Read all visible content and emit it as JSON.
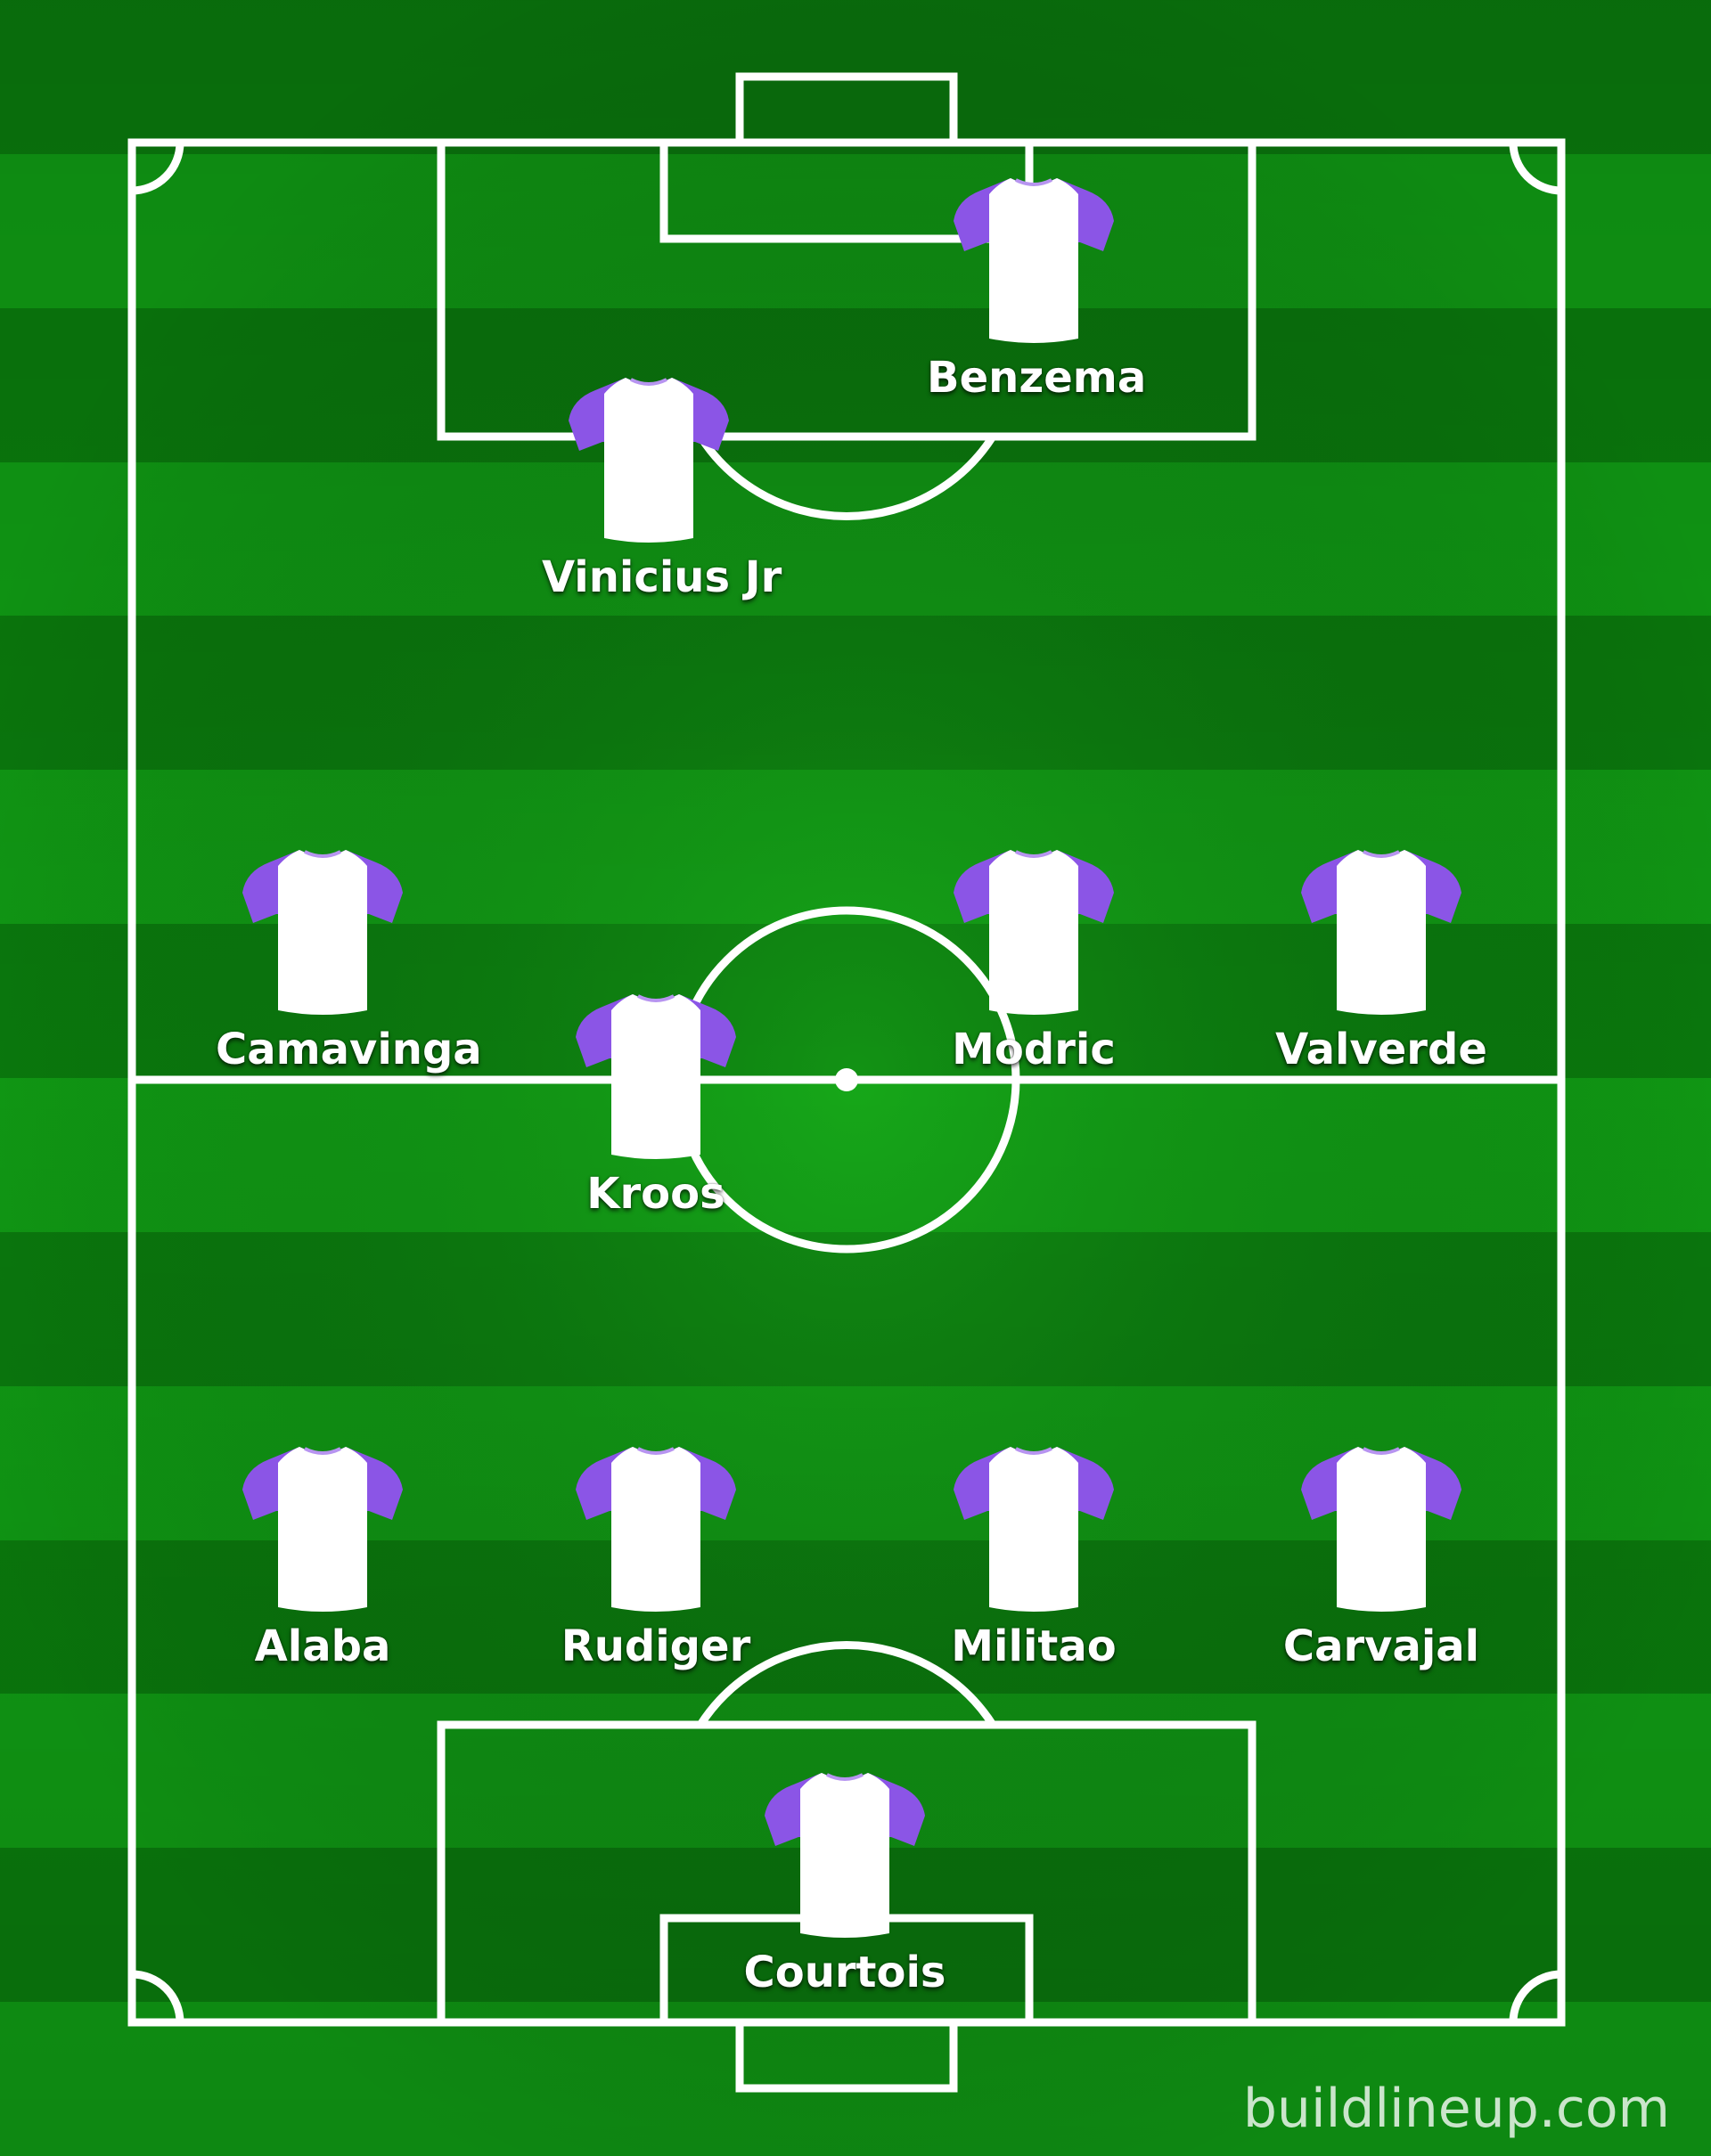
{
  "colors": {
    "grass_dark": "#0a7a0d",
    "grass_light": "#109a14",
    "line": "#ffffff",
    "shirt_body": "#ffffff",
    "shirt_sleeves": "#8b55e6"
  },
  "players": [
    {
      "id": "benzema",
      "name": "Benzema"
    },
    {
      "id": "vinicius",
      "name": "Vinicius Jr"
    },
    {
      "id": "camavinga",
      "name": "Camavinga"
    },
    {
      "id": "modric",
      "name": "Modric"
    },
    {
      "id": "valverde",
      "name": "Valverde"
    },
    {
      "id": "kroos",
      "name": "Kroos"
    },
    {
      "id": "alaba",
      "name": "Alaba"
    },
    {
      "id": "rudiger",
      "name": "Rudiger"
    },
    {
      "id": "militao",
      "name": "Militao"
    },
    {
      "id": "carvajal",
      "name": "Carvajal"
    },
    {
      "id": "courtois",
      "name": "Courtois"
    }
  ],
  "watermark": "buildlineup.com"
}
